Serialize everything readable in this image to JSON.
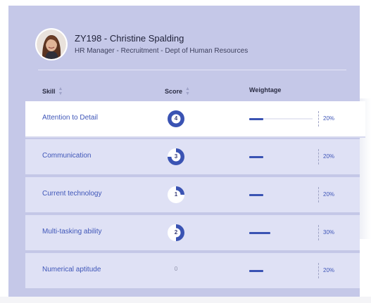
{
  "employee": {
    "name": "ZY198 - Christine Spalding",
    "subtitle": "HR Manager - Recruitment - Dept of Human Resources"
  },
  "table": {
    "headers": {
      "skill": "Skill",
      "score": "Score",
      "weightage": "Weightage"
    },
    "rows": [
      {
        "skill": "Attention to Detail",
        "score": "4",
        "score_fraction": 1.0,
        "weightage_label": "20%",
        "weightage": 20,
        "active": true
      },
      {
        "skill": "Communication",
        "score": "3",
        "score_fraction": 0.75,
        "weightage_label": "20%",
        "weightage": 20,
        "active": false
      },
      {
        "skill": "Current technology",
        "score": "1",
        "score_fraction": 0.25,
        "weightage_label": "20%",
        "weightage": 20,
        "active": false
      },
      {
        "skill": "Multi-tasking ability",
        "score": "2",
        "score_fraction": 0.5,
        "weightage_label": "30%",
        "weightage": 30,
        "active": false
      },
      {
        "skill": "Numerical aptitude",
        "score": "0",
        "score_fraction": 0,
        "weightage_label": "20%",
        "weightage": 20,
        "active": false
      }
    ]
  },
  "colors": {
    "panel": "#c5c8e8",
    "row": "#dfe1f5",
    "accent": "#3a53b3",
    "link": "#3f56b8"
  }
}
